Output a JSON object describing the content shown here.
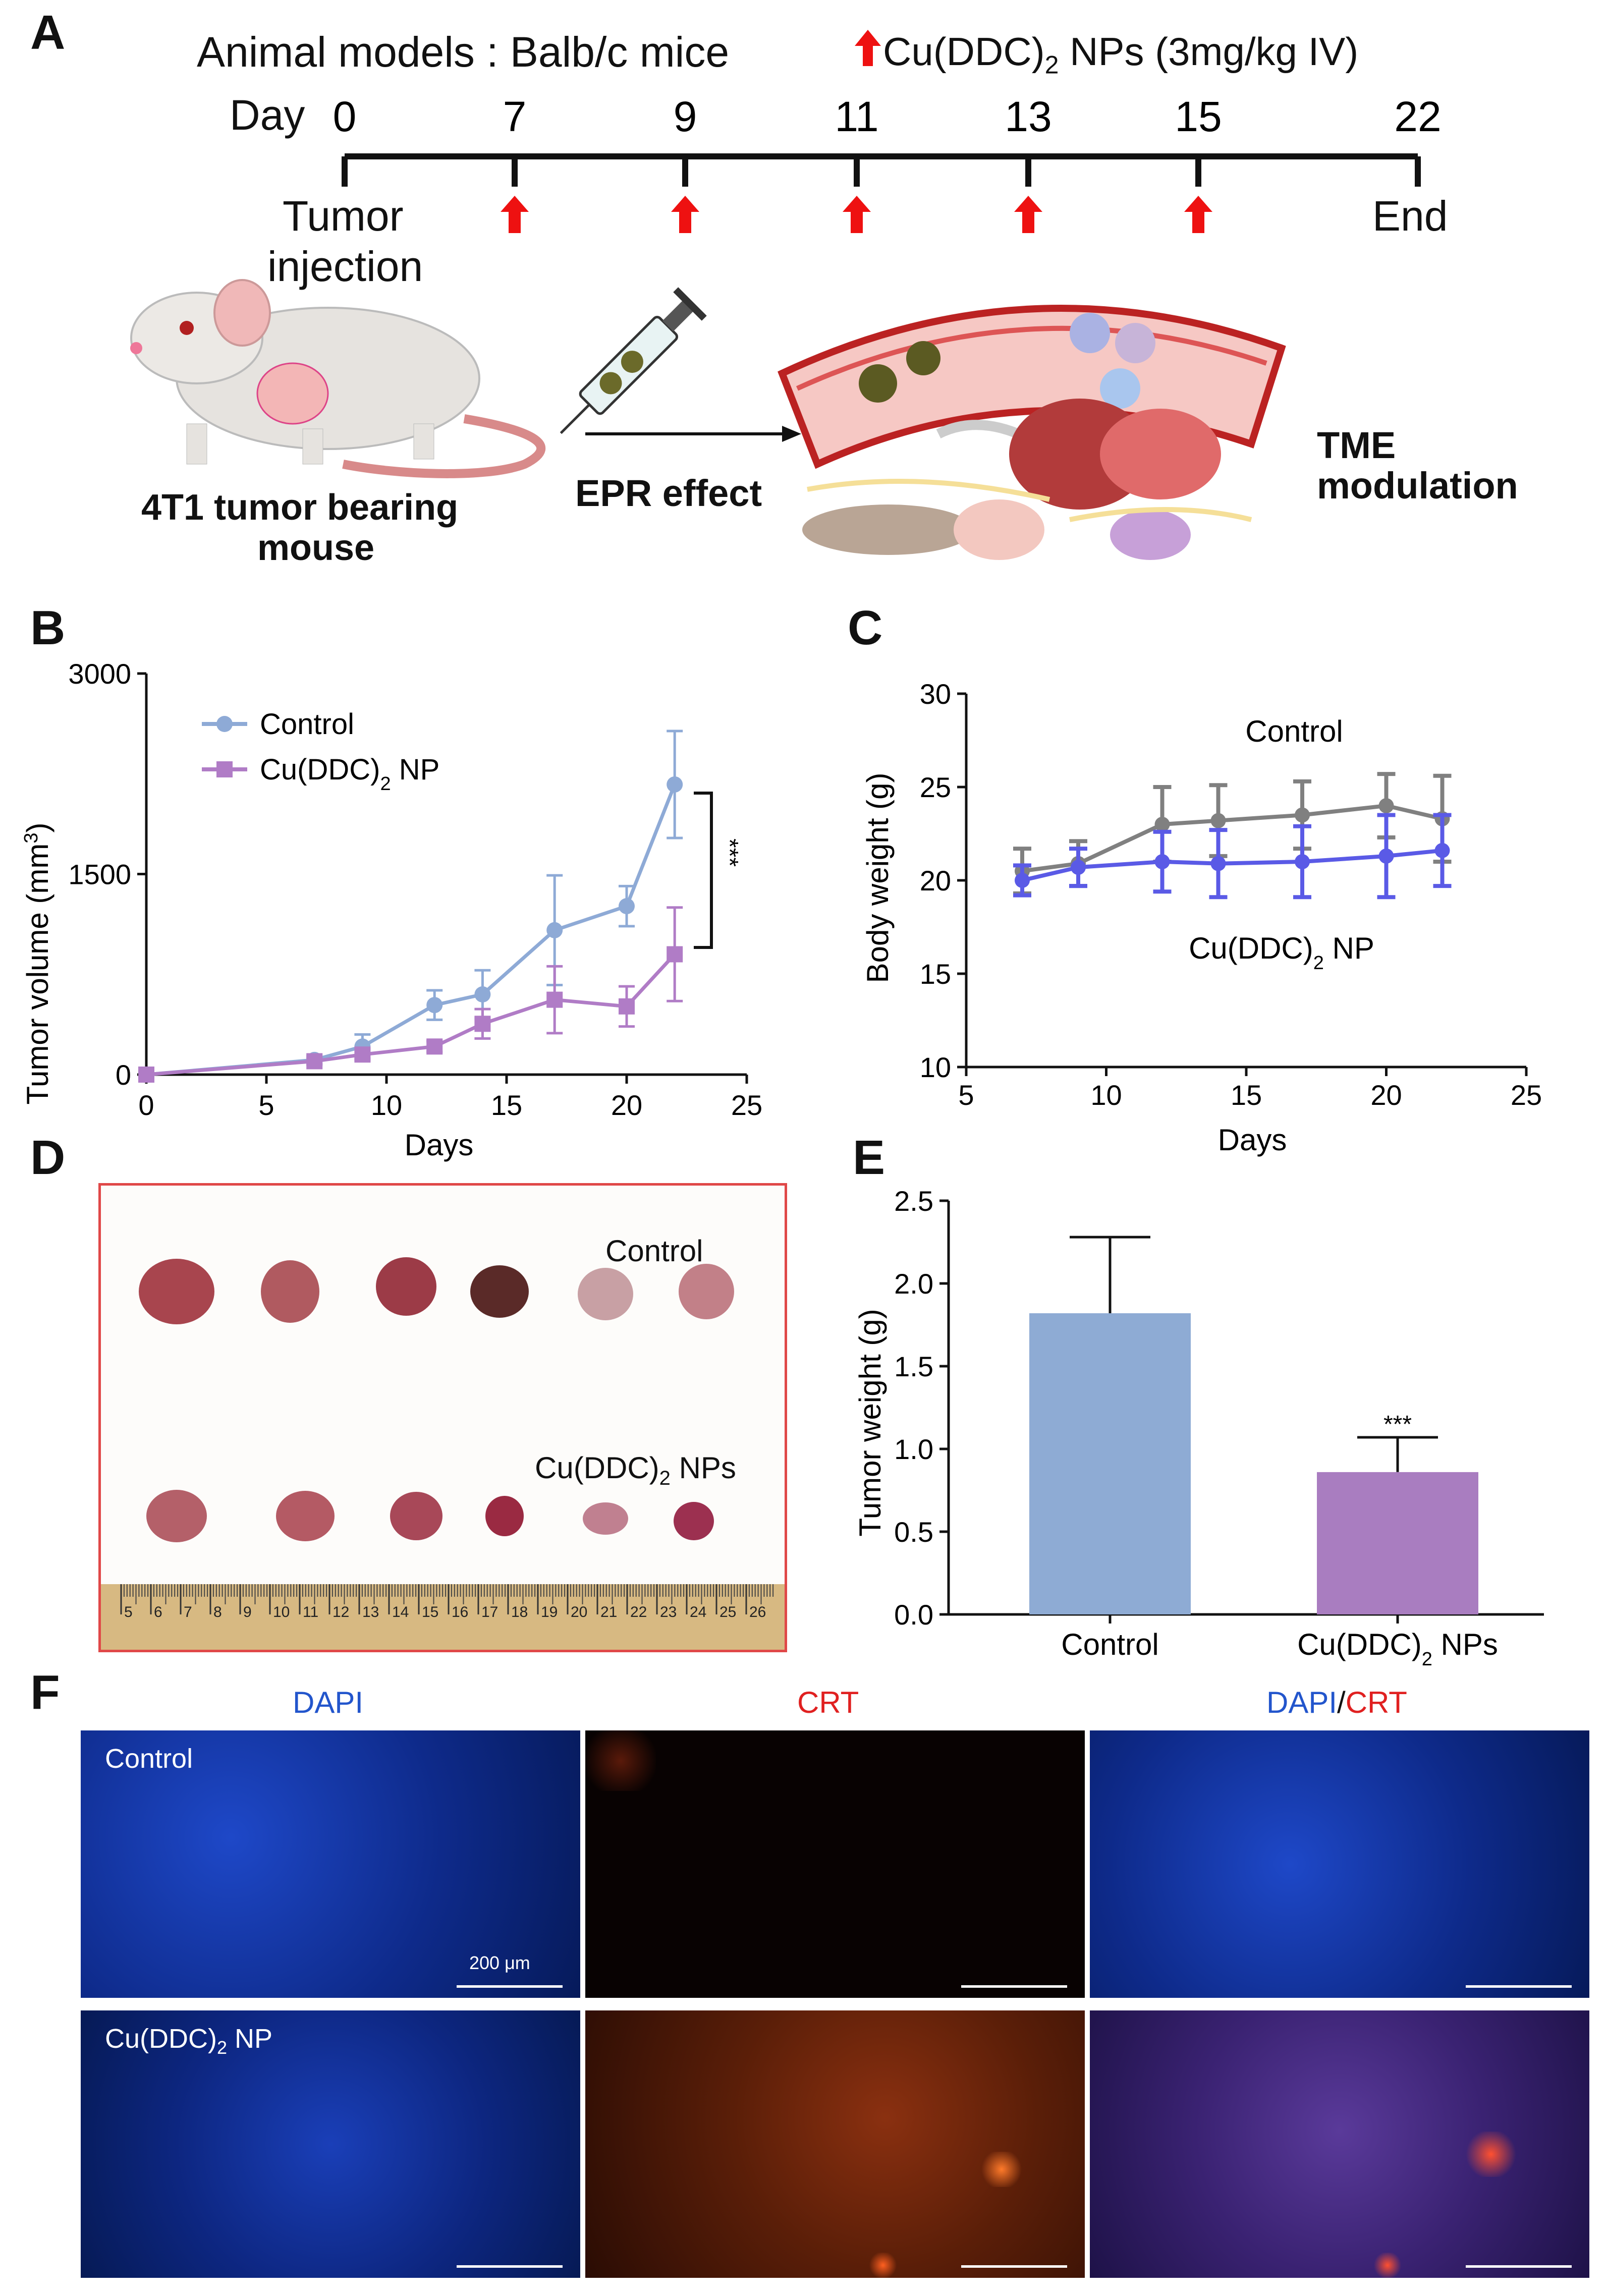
{
  "panels": {
    "a": "A",
    "b": "B",
    "c": "C",
    "d": "D",
    "e": "E",
    "f": "F"
  },
  "timeline": {
    "model_text": "Animal models : Balb/c mice",
    "legend_text": "Cu(DDC)",
    "legend_sub": "2",
    "legend_suffix": " NPs (3mg/kg IV)",
    "day_label": "Day",
    "days": [
      "0",
      "7",
      "9",
      "11",
      "13",
      "15",
      "22"
    ],
    "dose_days": [
      7,
      9,
      11,
      13,
      15
    ],
    "start_label_1": "Tumor",
    "start_label_2": "injection",
    "end_label": "End",
    "mouse_caption_1": "4T1 tumor bearing",
    "mouse_caption_2": "mouse",
    "epr_label": "EPR effect",
    "tme_label_1": "TME",
    "tme_label_2": "modulation",
    "arrow_color": "#ee1111"
  },
  "chart_data": [
    {
      "id": "B",
      "type": "line",
      "xlabel": "Days",
      "ylabel": "Tumor volume (mm",
      "ylabel_sup": "3",
      "ylabel_end": ")",
      "xlim": [
        0,
        25
      ],
      "ylim": [
        0,
        3000
      ],
      "xticks": [
        0,
        5,
        10,
        15,
        20,
        25
      ],
      "yticks": [
        0,
        1500,
        3000
      ],
      "series": [
        {
          "name": "Control",
          "color": "#8eaad6",
          "marker": "circle",
          "x": [
            0,
            7,
            9,
            12,
            14,
            17,
            20,
            22
          ],
          "y": [
            0,
            110,
            210,
            520,
            600,
            1080,
            1260,
            2170
          ],
          "err": [
            0,
            30,
            90,
            110,
            180,
            410,
            150,
            400
          ]
        },
        {
          "name": "Cu(DDC)",
          "name_sub": "2",
          "name_suffix": " NP",
          "color": "#b07cc6",
          "marker": "square",
          "x": [
            0,
            7,
            9,
            12,
            14,
            17,
            20,
            22
          ],
          "y": [
            0,
            100,
            150,
            210,
            380,
            560,
            510,
            900
          ],
          "err": [
            0,
            25,
            40,
            40,
            110,
            250,
            150,
            350
          ]
        }
      ],
      "significance": "***"
    },
    {
      "id": "C",
      "type": "line",
      "xlabel": "Days",
      "ylabel": "Body weight (g)",
      "xlim": [
        5,
        25
      ],
      "ylim": [
        10,
        30
      ],
      "xticks": [
        5,
        10,
        15,
        20,
        25
      ],
      "yticks": [
        10,
        15,
        20,
        25,
        30
      ],
      "series": [
        {
          "name": "Control",
          "color": "#808080",
          "x": [
            7,
            9,
            12,
            14,
            17,
            20,
            22
          ],
          "y": [
            20.5,
            20.9,
            23.0,
            23.2,
            23.5,
            24.0,
            23.3
          ],
          "err": [
            1.2,
            1.2,
            2.0,
            1.9,
            1.8,
            1.7,
            2.3
          ]
        },
        {
          "name": "Cu(DDC)",
          "name_sub": "2",
          "name_suffix": " NP",
          "color": "#5a5ae6",
          "x": [
            7,
            9,
            12,
            14,
            17,
            20,
            22
          ],
          "y": [
            20.0,
            20.7,
            21.0,
            20.9,
            21.0,
            21.3,
            21.6
          ],
          "err": [
            0.8,
            1.0,
            1.6,
            1.8,
            1.9,
            2.2,
            1.9
          ]
        }
      ]
    },
    {
      "id": "E",
      "type": "bar",
      "categories": [
        "Control",
        "Cu(DDC)2 NPs"
      ],
      "cat_label_1": "Control",
      "cat_label_2": "Cu(DDC)",
      "cat_label_2_sub": "2",
      "cat_label_2_suffix": " NPs",
      "values": [
        1.82,
        0.86
      ],
      "err": [
        0.46,
        0.21
      ],
      "colors": [
        "#8eabd4",
        "#a97dc0"
      ],
      "ylabel": "Tumor weight (g)",
      "ylim": [
        0,
        2.5
      ],
      "yticks": [
        "0.0",
        "0.5",
        "1.0",
        "1.5",
        "2.0",
        "2.5"
      ],
      "significance": "***"
    }
  ],
  "photo": {
    "control_label": "Control",
    "treated_label": "Cu(DDC)",
    "treated_sub": "2",
    "treated_suffix": " NPs",
    "ruler_numbers": [
      "5",
      "6",
      "7",
      "8",
      "9",
      "10",
      "11",
      "12",
      "13",
      "14",
      "15",
      "16",
      "17",
      "18",
      "19",
      "20",
      "21",
      "22",
      "23",
      "24",
      "25",
      "26"
    ]
  },
  "microscopy": {
    "col_dapi": "DAPI",
    "col_crt": "CRT",
    "col_merge_a": "DAPI",
    "col_merge_slash": "/",
    "col_merge_b": "CRT",
    "row_control": "Control",
    "row_treated": "Cu(DDC)",
    "row_treated_sub": "2",
    "row_treated_suffix": " NP",
    "scale_text": "200 μm",
    "dapi_color": "#2255cc",
    "crt_color": "#e02020"
  }
}
